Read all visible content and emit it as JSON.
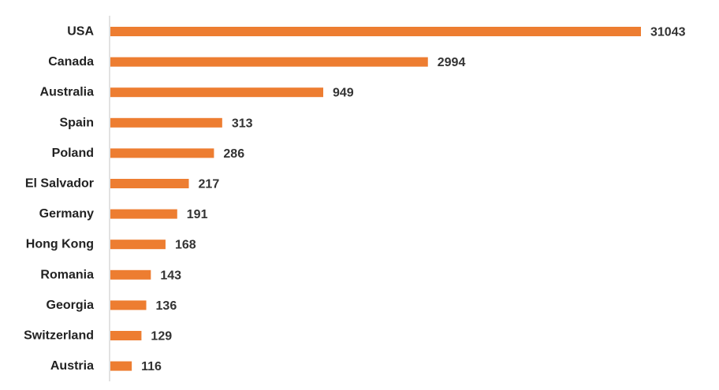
{
  "chart_data": {
    "type": "bar",
    "orientation": "horizontal",
    "title": "",
    "xlabel": "",
    "ylabel": "",
    "categories": [
      "USA",
      "Canada",
      "Australia",
      "Spain",
      "Poland",
      "El Salvador",
      "Germany",
      "Hong Kong",
      "Romania",
      "Georgia",
      "Switzerland",
      "Austria"
    ],
    "values": [
      31043,
      2994,
      949,
      313,
      286,
      217,
      191,
      168,
      143,
      136,
      129,
      116
    ],
    "data_labels": [
      "31043",
      "2994",
      "949",
      "313",
      "286",
      "217",
      "191",
      "168",
      "143",
      "136",
      "129",
      "116"
    ],
    "axis_scale": "log",
    "xlim": [
      100,
      31043
    ],
    "grid": false,
    "legend": "none",
    "bar_color": "#ED7D31",
    "axis_color": "#D9D9D9"
  }
}
